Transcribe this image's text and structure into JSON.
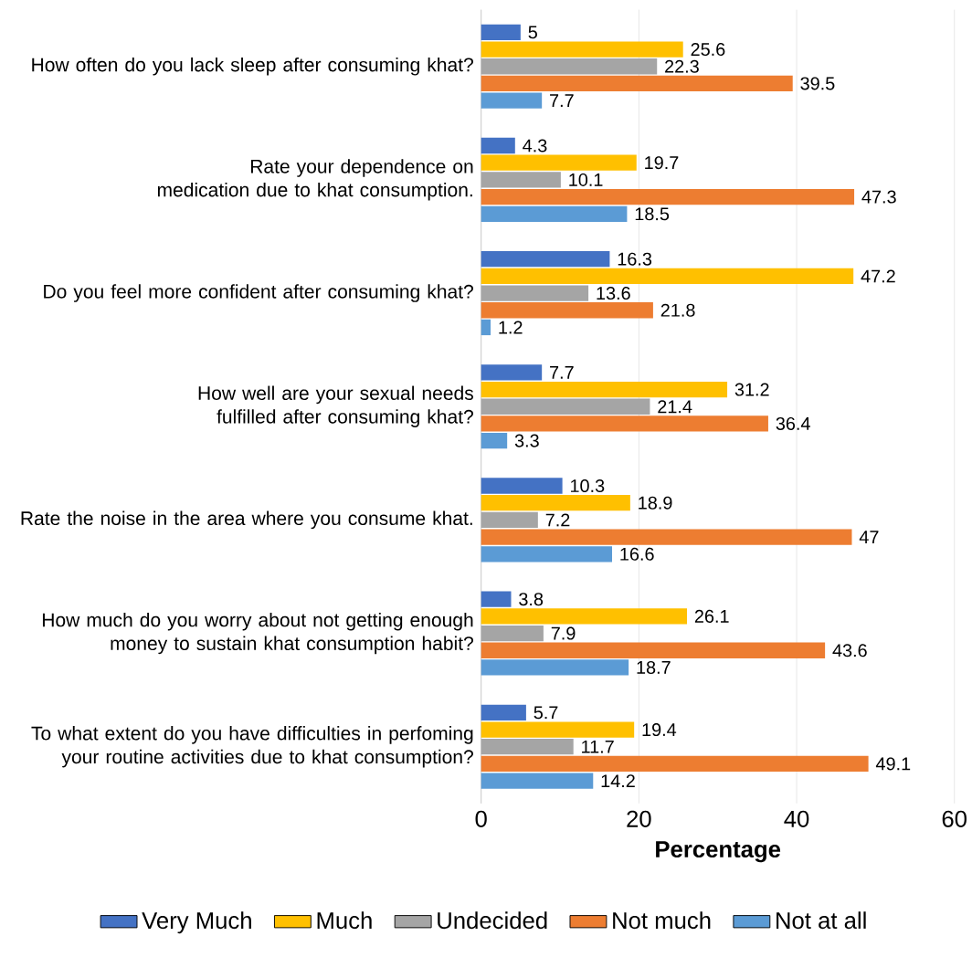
{
  "chart_data": {
    "type": "bar",
    "orientation": "horizontal",
    "xlabel": "Percentage",
    "categories": [
      "How often do you lack sleep  after consuming khat?",
      "Rate your dependence on medication due to khat consumption.",
      "Do you feel more confident after consuming khat?",
      "How well are your sexual needs fulfilled after consuming khat?",
      "Rate the noise in the area where you consume khat.",
      "How much do you worry about not getting enough money to sustain khat consumption habit?",
      "To what extent do you have difficulties in perfoming your routine activities due to khat consumption?"
    ],
    "series": [
      {
        "name": "Very Much",
        "color": "#4472c4",
        "values": [
          5,
          4.3,
          16.3,
          7.7,
          10.3,
          3.8,
          5.7
        ]
      },
      {
        "name": "Much",
        "color": "#ffc000",
        "values": [
          25.6,
          19.7,
          47.2,
          31.2,
          18.9,
          26.1,
          19.4
        ]
      },
      {
        "name": "Undecided",
        "color": "#a5a5a5",
        "values": [
          22.3,
          10.1,
          13.6,
          21.4,
          7.2,
          7.9,
          11.7
        ]
      },
      {
        "name": "Not much",
        "color": "#ed7d31",
        "values": [
          39.5,
          47.3,
          21.8,
          36.4,
          47,
          43.6,
          49.1
        ]
      },
      {
        "name": "Not at all",
        "color": "#5b9bd5",
        "values": [
          7.7,
          18.5,
          1.2,
          3.3,
          16.6,
          18.7,
          14.2
        ]
      }
    ],
    "xlim": [
      0,
      60
    ],
    "xticks": [
      0,
      20,
      40,
      60
    ],
    "grid": "x",
    "legend": "bottom",
    "data_labels": true
  }
}
